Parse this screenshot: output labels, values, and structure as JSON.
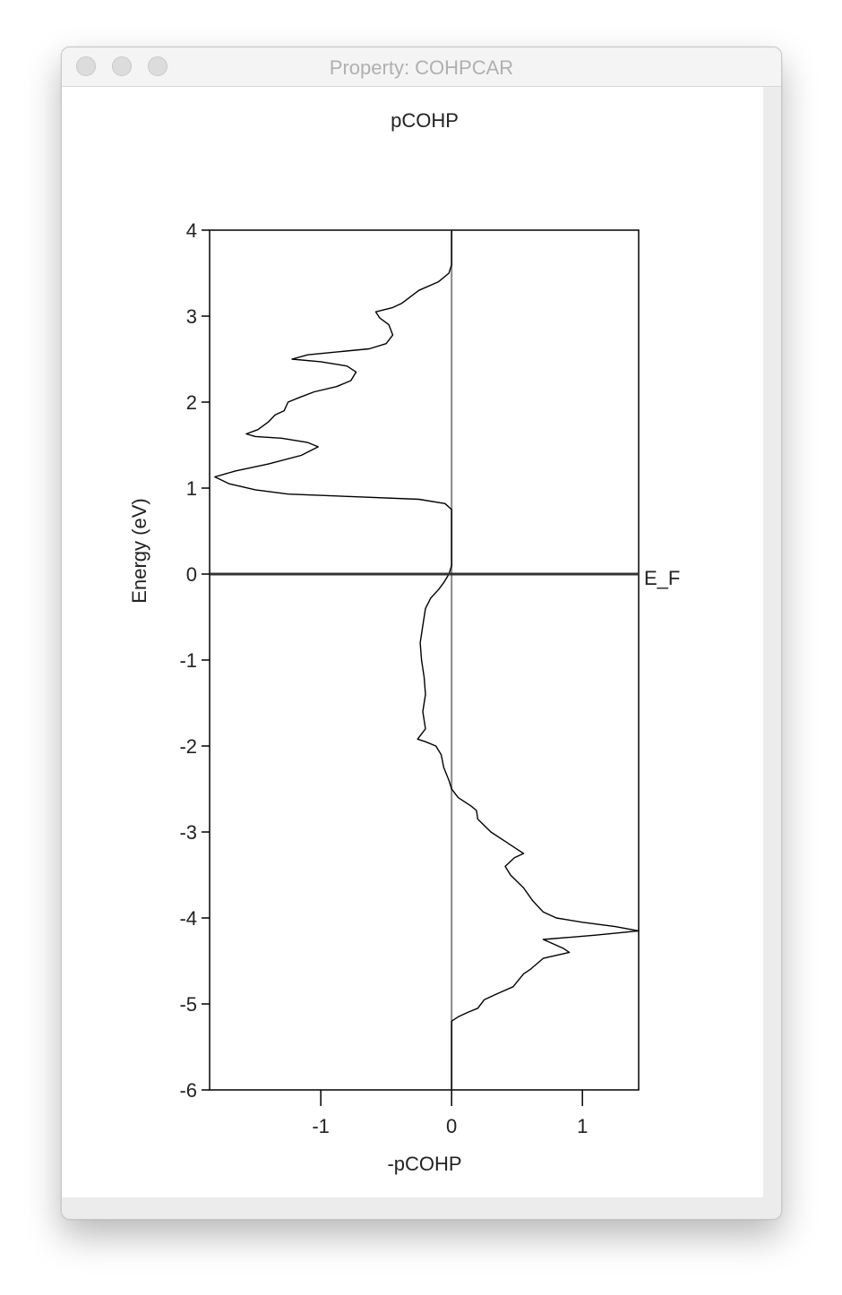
{
  "window": {
    "title": "Property: COHPCAR"
  },
  "chart_data": {
    "type": "line",
    "title": "pCOHP",
    "xlabel": "-pCOHP",
    "ylabel": "Energy (eV)",
    "xlim": [
      -1.85,
      1.43
    ],
    "ylim": [
      -6,
      4
    ],
    "xticks": [
      -1,
      0,
      1
    ],
    "xtick_labels": [
      "-1",
      "0",
      "1"
    ],
    "yticks": [
      4,
      3,
      2,
      1,
      0,
      -1,
      -2,
      -3,
      -4,
      -5,
      -6
    ],
    "ytick_labels": [
      "4",
      "3",
      "2",
      "1",
      "0",
      "-1",
      "-2",
      "-3",
      "-4",
      "-5",
      "-6"
    ],
    "fermi_level": {
      "energy": 0,
      "label": "E_F"
    },
    "zero_line_x": 0,
    "grid": false,
    "series": [
      {
        "points": [
          [
            0.0,
            4.0
          ],
          [
            0.0,
            3.6
          ],
          [
            -0.02,
            3.5
          ],
          [
            -0.1,
            3.4
          ],
          [
            -0.25,
            3.3
          ],
          [
            -0.38,
            3.15
          ],
          [
            -0.45,
            3.1
          ],
          [
            -0.58,
            3.05
          ],
          [
            -0.55,
            2.98
          ],
          [
            -0.48,
            2.9
          ],
          [
            -0.45,
            2.78
          ],
          [
            -0.5,
            2.68
          ],
          [
            -0.63,
            2.62
          ],
          [
            -0.9,
            2.58
          ],
          [
            -1.1,
            2.55
          ],
          [
            -1.22,
            2.5
          ],
          [
            -1.0,
            2.47
          ],
          [
            -0.8,
            2.42
          ],
          [
            -0.73,
            2.35
          ],
          [
            -0.77,
            2.25
          ],
          [
            -0.88,
            2.18
          ],
          [
            -1.05,
            2.12
          ],
          [
            -1.17,
            2.05
          ],
          [
            -1.25,
            2.0
          ],
          [
            -1.28,
            1.9
          ],
          [
            -1.35,
            1.85
          ],
          [
            -1.4,
            1.77
          ],
          [
            -1.48,
            1.68
          ],
          [
            -1.57,
            1.63
          ],
          [
            -1.5,
            1.6
          ],
          [
            -1.3,
            1.58
          ],
          [
            -1.1,
            1.53
          ],
          [
            -1.02,
            1.48
          ],
          [
            -1.15,
            1.38
          ],
          [
            -1.4,
            1.28
          ],
          [
            -1.65,
            1.2
          ],
          [
            -1.81,
            1.13
          ],
          [
            -1.7,
            1.05
          ],
          [
            -1.5,
            0.98
          ],
          [
            -1.25,
            0.93
          ],
          [
            -0.75,
            0.9
          ],
          [
            -0.25,
            0.87
          ],
          [
            -0.05,
            0.82
          ],
          [
            0.0,
            0.75
          ],
          [
            0.0,
            0.4
          ],
          [
            0.0,
            0.1
          ],
          [
            -0.02,
            0.0
          ],
          [
            -0.06,
            -0.1
          ],
          [
            -0.1,
            -0.18
          ],
          [
            -0.16,
            -0.28
          ],
          [
            -0.2,
            -0.4
          ],
          [
            -0.22,
            -0.6
          ],
          [
            -0.24,
            -0.8
          ],
          [
            -0.23,
            -1.0
          ],
          [
            -0.21,
            -1.2
          ],
          [
            -0.2,
            -1.4
          ],
          [
            -0.22,
            -1.6
          ],
          [
            -0.2,
            -1.8
          ],
          [
            -0.26,
            -1.92
          ],
          [
            -0.2,
            -1.95
          ],
          [
            -0.12,
            -2.0
          ],
          [
            -0.08,
            -2.1
          ],
          [
            -0.06,
            -2.25
          ],
          [
            -0.02,
            -2.4
          ],
          [
            0.0,
            -2.5
          ],
          [
            0.05,
            -2.6
          ],
          [
            0.15,
            -2.7
          ],
          [
            0.19,
            -2.75
          ],
          [
            0.2,
            -2.85
          ],
          [
            0.3,
            -3.0
          ],
          [
            0.4,
            -3.1
          ],
          [
            0.5,
            -3.2
          ],
          [
            0.55,
            -3.25
          ],
          [
            0.48,
            -3.3
          ],
          [
            0.41,
            -3.4
          ],
          [
            0.45,
            -3.5
          ],
          [
            0.55,
            -3.65
          ],
          [
            0.62,
            -3.8
          ],
          [
            0.7,
            -3.93
          ],
          [
            0.8,
            -4.0
          ],
          [
            1.0,
            -4.05
          ],
          [
            1.25,
            -4.1
          ],
          [
            1.43,
            -4.15
          ],
          [
            1.1,
            -4.2
          ],
          [
            0.7,
            -4.25
          ],
          [
            0.85,
            -4.35
          ],
          [
            0.9,
            -4.4
          ],
          [
            0.7,
            -4.47
          ],
          [
            0.6,
            -4.6
          ],
          [
            0.55,
            -4.65
          ],
          [
            0.47,
            -4.8
          ],
          [
            0.35,
            -4.88
          ],
          [
            0.25,
            -4.95
          ],
          [
            0.2,
            -5.05
          ],
          [
            0.12,
            -5.1
          ],
          [
            0.05,
            -5.15
          ],
          [
            0.0,
            -5.2
          ],
          [
            0.0,
            -5.5
          ],
          [
            0.0,
            -6.0
          ]
        ]
      }
    ]
  }
}
